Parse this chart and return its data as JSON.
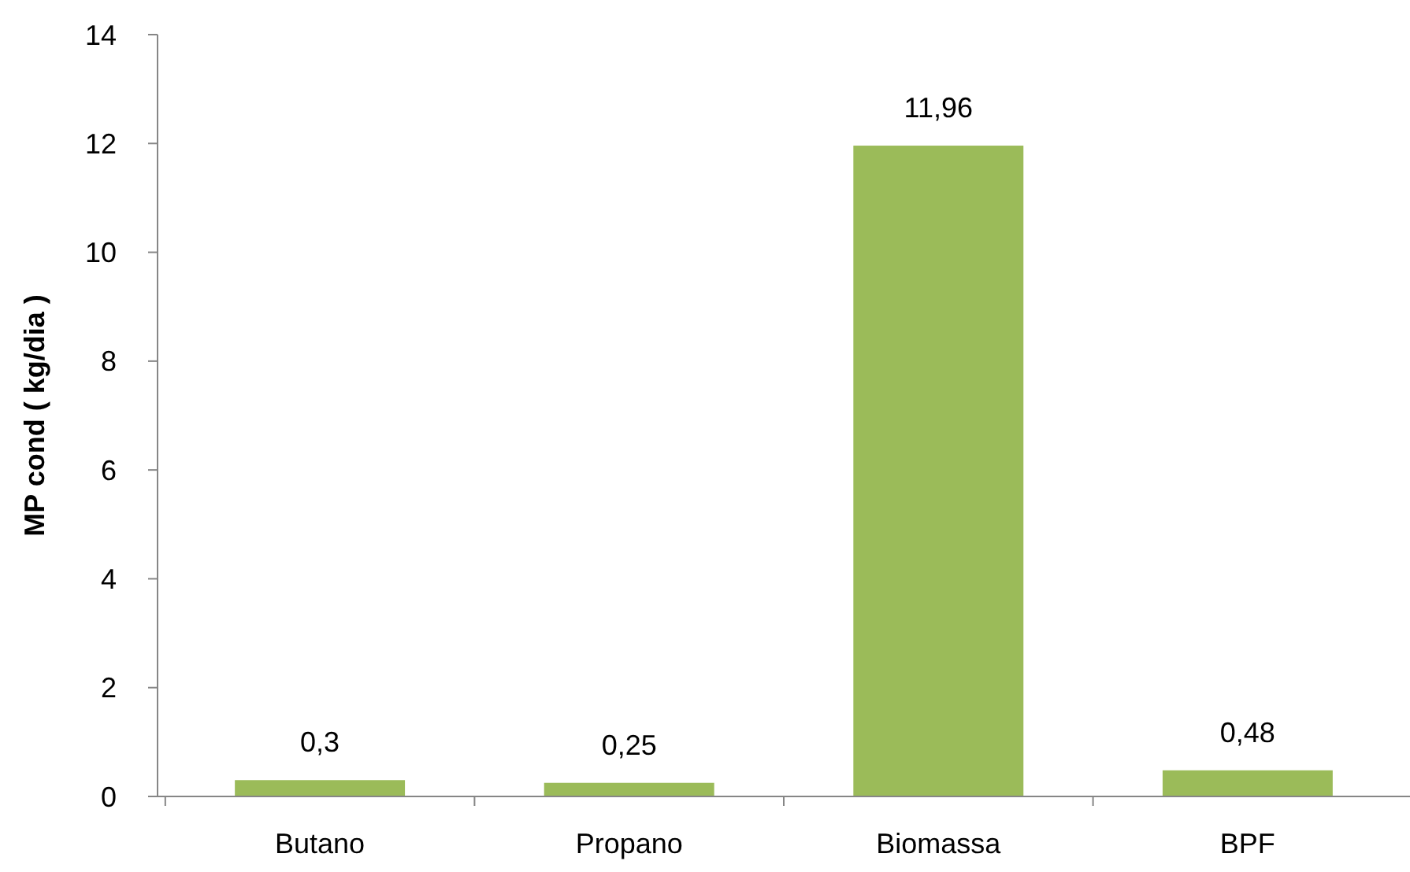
{
  "chart_data": {
    "type": "bar",
    "ylabel": "MP cond ( kg/dia )",
    "categories": [
      "Butano",
      "Propano",
      "Biomassa",
      "BPF"
    ],
    "values": [
      0.3,
      0.25,
      11.96,
      0.48
    ],
    "value_labels": [
      "0,3",
      "0,25",
      "11,96",
      "0,48"
    ],
    "color": "#9bbb59",
    "ylim": [
      0,
      14
    ],
    "yticks": [
      0,
      2,
      4,
      6,
      8,
      10,
      12,
      14
    ],
    "grid": false
  }
}
